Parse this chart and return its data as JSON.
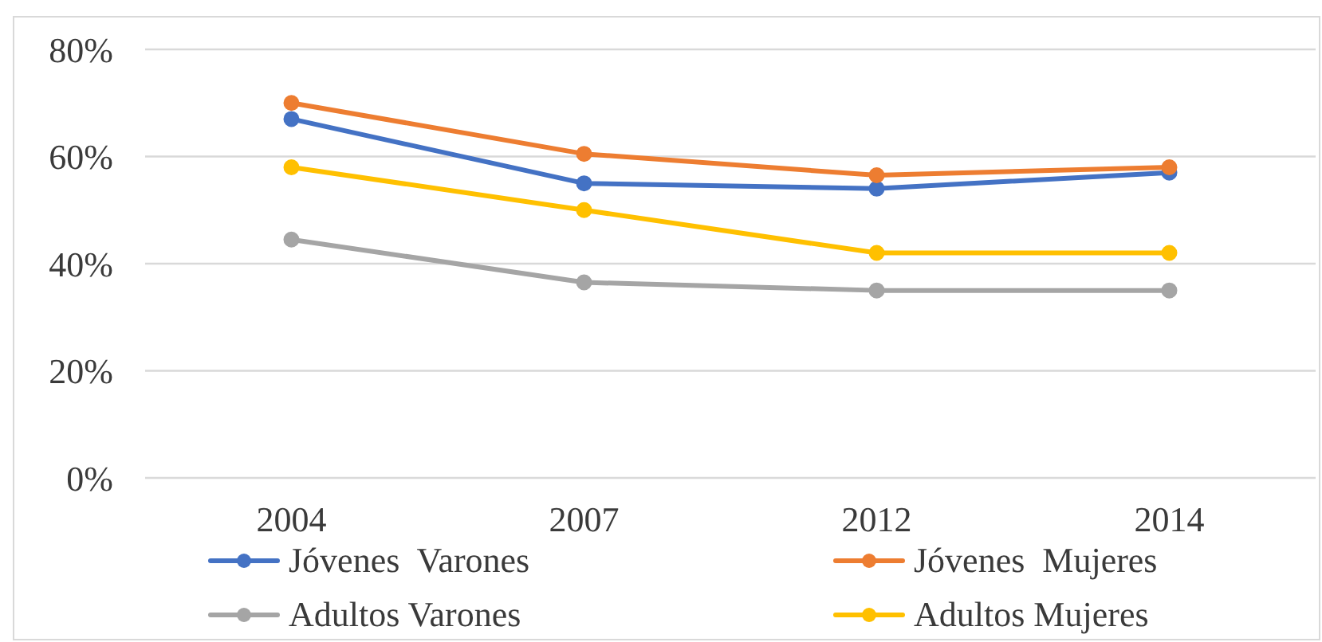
{
  "chart_data": {
    "type": "line",
    "categories": [
      "2004",
      "2007",
      "2012",
      "2014"
    ],
    "series": [
      {
        "name": "Jóvenes  Varones",
        "color": "#4472c4",
        "values": [
          67,
          55,
          54,
          57
        ]
      },
      {
        "name": "Jóvenes  Mujeres",
        "color": "#ed7d31",
        "values": [
          70,
          60.5,
          56.5,
          58
        ]
      },
      {
        "name": "Adultos Varones",
        "color": "#a5a5a5",
        "values": [
          44.5,
          36.5,
          35,
          35
        ]
      },
      {
        "name": "Adultos Mujeres",
        "color": "#ffc000",
        "values": [
          58,
          50,
          42,
          42
        ]
      }
    ],
    "ylim": [
      0,
      80
    ],
    "yticks": [
      {
        "value": 0,
        "label": "0%"
      },
      {
        "value": 20,
        "label": "20%"
      },
      {
        "value": 40,
        "label": "40%"
      },
      {
        "value": 60,
        "label": "60%"
      },
      {
        "value": 80,
        "label": "80%"
      }
    ],
    "grid": "y",
    "legend": "bottom",
    "marker": "circle",
    "line_style": "solid"
  }
}
